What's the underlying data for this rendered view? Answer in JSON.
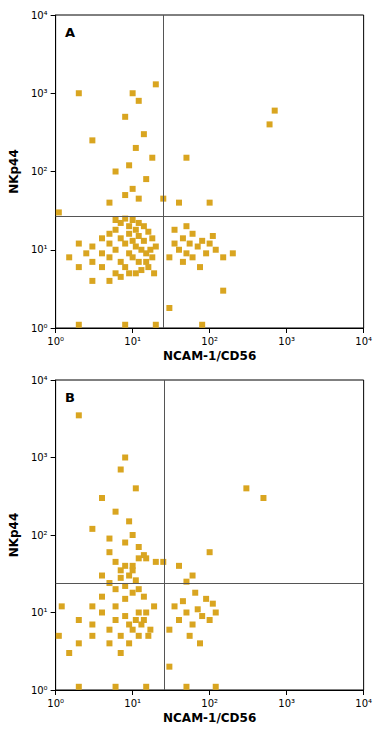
{
  "chart_data": [
    {
      "type": "scatter",
      "title": "A",
      "x_label": "NCAM-1/CD56",
      "y_label": "NKp44",
      "color": "#d9a520",
      "marker": "square",
      "log": true,
      "grid": false,
      "xlim": [
        1,
        10000
      ],
      "ylim": [
        1,
        10000
      ],
      "xticks": [
        {
          "value": 1,
          "label": "10⁰"
        },
        {
          "value": 10,
          "label": "10¹"
        },
        {
          "value": 100,
          "label": "10²"
        },
        {
          "value": 1000,
          "label": "10³"
        },
        {
          "value": 10000,
          "label": "10⁴"
        }
      ],
      "yticks": [
        {
          "value": 1,
          "label": "10⁰"
        },
        {
          "value": 10,
          "label": "10¹"
        },
        {
          "value": 100,
          "label": "10²"
        },
        {
          "value": 1000,
          "label": "10³"
        },
        {
          "value": 10000,
          "label": "10⁴"
        }
      ],
      "quadrant_x": 25,
      "quadrant_y": 27,
      "x": [
        5,
        6,
        7,
        8,
        9,
        10,
        11,
        12,
        13,
        8,
        7,
        9,
        10,
        6,
        5,
        4,
        3,
        4,
        14,
        15,
        16,
        12,
        11,
        9,
        7,
        6,
        5,
        4,
        3,
        2.5,
        2,
        2,
        3,
        5,
        7,
        9,
        11,
        13,
        15,
        17,
        18,
        16,
        14,
        12,
        10,
        8,
        6,
        18,
        20,
        19,
        35,
        40,
        45,
        50,
        55,
        60,
        70,
        80,
        90,
        100,
        120,
        150,
        200,
        45,
        60,
        75,
        110,
        35,
        50,
        30,
        5,
        8,
        10,
        12,
        15,
        6,
        9,
        11,
        14,
        8,
        12,
        10,
        20,
        18,
        3,
        2,
        25,
        40,
        100,
        50,
        600,
        700,
        2,
        8,
        20,
        80,
        30,
        150,
        1.1,
        1.5
      ],
      "y": [
        8,
        10,
        7,
        12,
        9,
        8,
        11,
        7,
        10,
        6,
        14,
        16,
        13,
        5,
        12,
        9,
        7,
        6,
        13,
        9,
        6,
        15,
        18,
        20,
        22,
        18,
        16,
        14,
        11,
        9,
        6,
        12,
        4,
        4,
        4.5,
        5,
        5,
        5.5,
        7,
        10,
        14,
        17,
        20,
        22,
        24,
        25,
        24,
        8,
        11,
        5,
        12,
        10,
        14,
        9,
        12,
        8,
        11,
        13,
        9,
        12,
        10,
        8,
        9,
        7,
        16,
        6,
        15,
        18,
        20,
        8,
        40,
        50,
        60,
        45,
        80,
        100,
        120,
        200,
        300,
        500,
        800,
        1000,
        1300,
        150,
        250,
        1000,
        45,
        40,
        40,
        150,
        400,
        600,
        1.1,
        1.1,
        1.1,
        1.1,
        1.8,
        3,
        30,
        8
      ]
    },
    {
      "type": "scatter",
      "title": "B",
      "x_label": "NCAM-1/CD56",
      "y_label": "NKp44",
      "color": "#d9a520",
      "marker": "square",
      "log": true,
      "grid": false,
      "xlim": [
        1,
        10000
      ],
      "ylim": [
        1,
        10000
      ],
      "xticks": [
        {
          "value": 1,
          "label": "10⁰"
        },
        {
          "value": 10,
          "label": "10¹"
        },
        {
          "value": 100,
          "label": "10²"
        },
        {
          "value": 1000,
          "label": "10³"
        },
        {
          "value": 10000,
          "label": "10⁴"
        }
      ],
      "yticks": [
        {
          "value": 1,
          "label": "10⁰"
        },
        {
          "value": 10,
          "label": "10¹"
        },
        {
          "value": 100,
          "label": "10²"
        },
        {
          "value": 1000,
          "label": "10³"
        },
        {
          "value": 10000,
          "label": "10⁴"
        }
      ],
      "quadrant_x": 26,
      "quadrant_y": 24,
      "x": [
        5,
        6,
        7,
        8,
        9,
        10,
        11,
        12,
        6,
        8,
        4,
        3,
        5,
        7,
        9,
        12,
        14,
        16,
        10,
        8,
        6,
        4,
        3,
        2,
        2,
        3,
        5,
        7,
        9,
        11,
        13,
        15,
        17,
        19,
        14,
        12,
        10,
        8,
        6,
        4,
        40,
        50,
        60,
        70,
        80,
        100,
        45,
        55,
        35,
        90,
        120,
        65,
        30,
        75,
        110,
        50,
        5,
        8,
        10,
        12,
        6,
        9,
        15,
        4,
        7,
        11,
        3,
        20,
        14,
        8,
        10,
        7,
        12,
        5,
        60,
        100,
        300,
        500,
        40,
        25,
        2,
        6,
        15,
        50,
        120,
        1.1,
        1.5,
        1.2,
        2,
        30
      ],
      "y": [
        6,
        8,
        5,
        9,
        7,
        6,
        8,
        5,
        12,
        15,
        10,
        7,
        4,
        3,
        4,
        10,
        8,
        5,
        18,
        22,
        20,
        16,
        5,
        4,
        8,
        12,
        24,
        28,
        30,
        26,
        7,
        10,
        6,
        12,
        16,
        20,
        35,
        40,
        45,
        30,
        8,
        10,
        7,
        11,
        9,
        8,
        14,
        5,
        12,
        15,
        10,
        18,
        6,
        4,
        13,
        25,
        60,
        80,
        100,
        70,
        200,
        150,
        50,
        300,
        700,
        400,
        120,
        45,
        55,
        1000,
        40,
        35,
        50,
        90,
        30,
        60,
        400,
        300,
        40,
        45,
        1.1,
        1.1,
        1.1,
        1.1,
        1.1,
        5,
        3,
        12,
        3500,
        2
      ]
    }
  ]
}
